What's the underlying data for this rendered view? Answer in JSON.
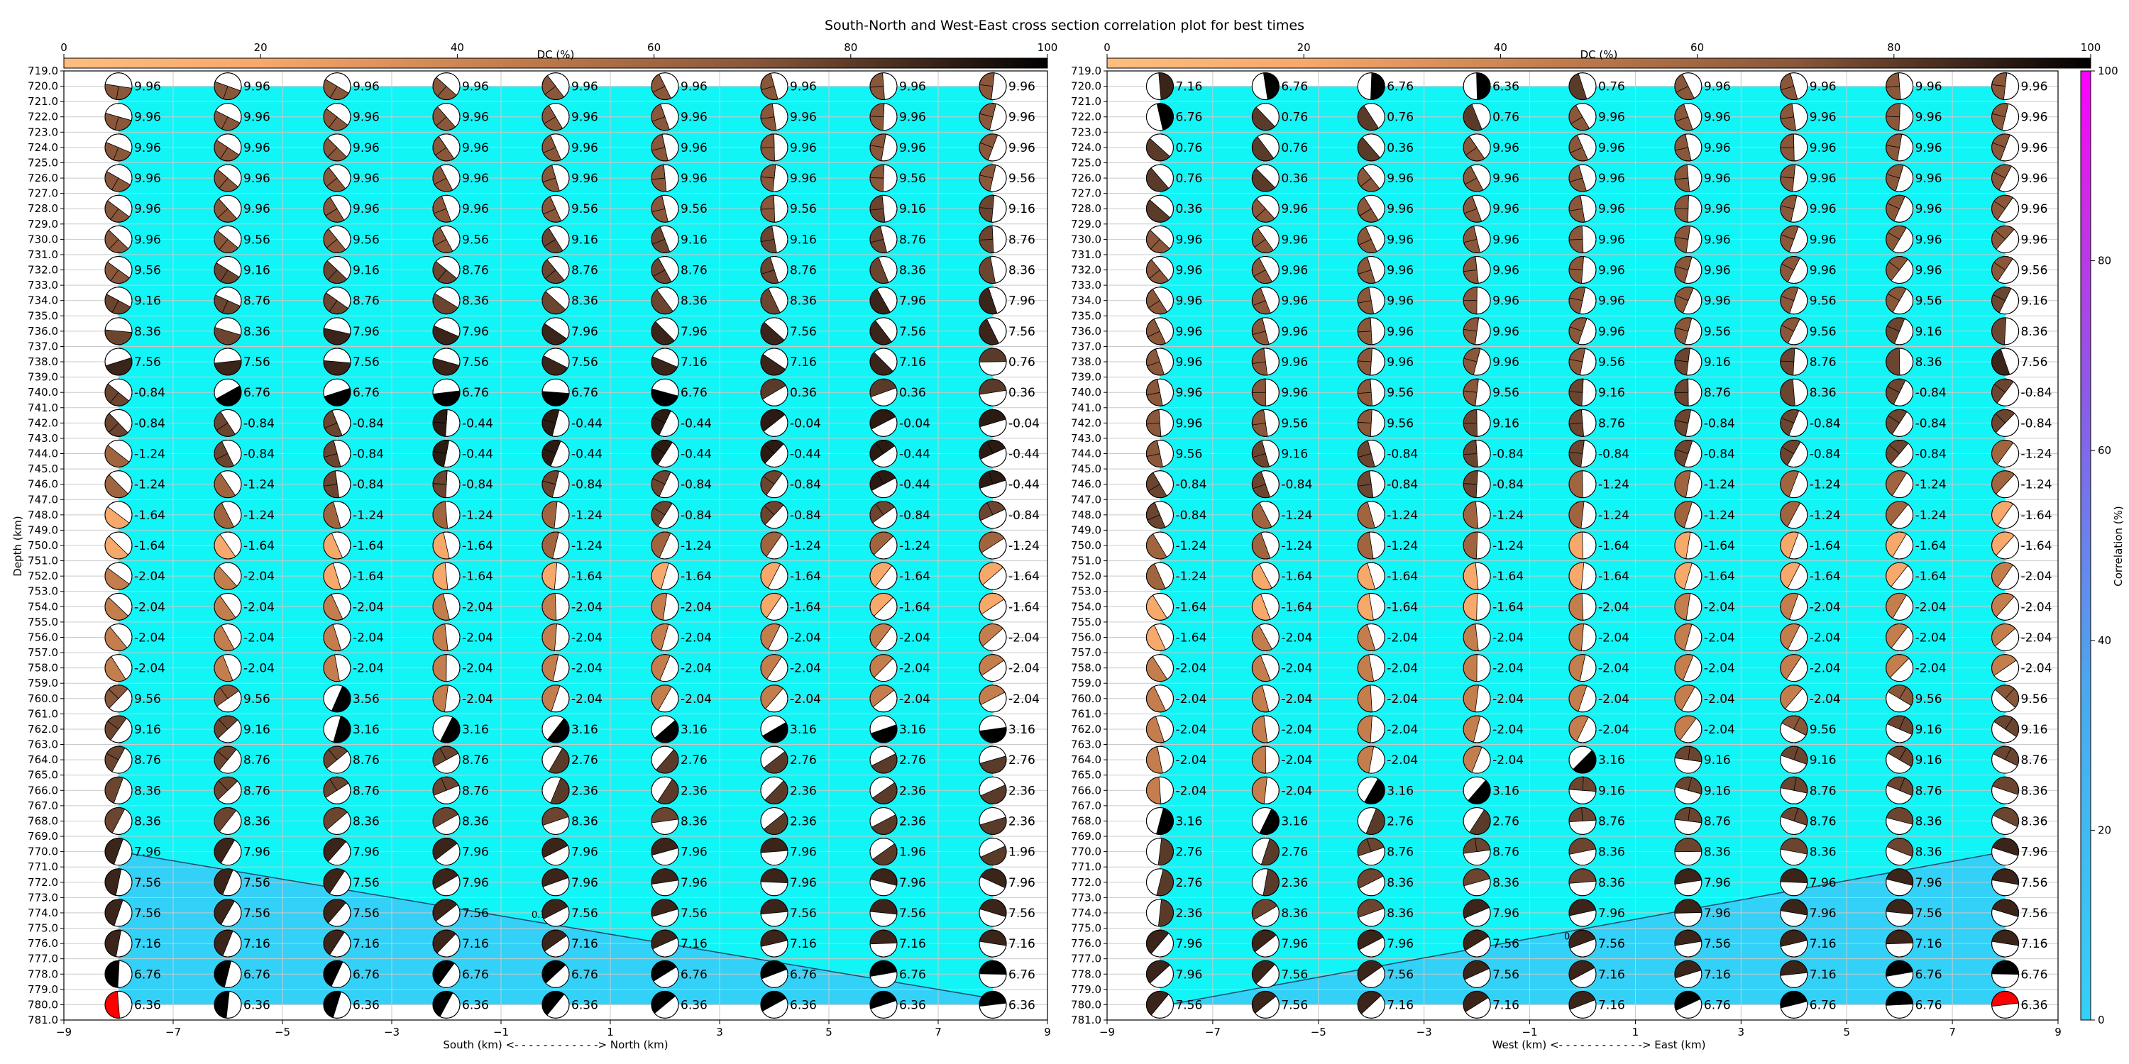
{
  "title": "South-North and West-East cross section correlation plot for best times",
  "colors": {
    "background_fill": "#12f5f7",
    "lower_fill": "#33d1f7",
    "grid": "#c9c9c9",
    "dc_cmap": [
      "#fdbe7f",
      "#f7a86b",
      "#d6844f",
      "#a0653e",
      "#6b4530",
      "#2b1b12",
      "#000000"
    ],
    "corr_cmap": [
      "#33d1f7",
      "#4aa8f0",
      "#8a5ce8",
      "#c92ee6",
      "#ff00ff"
    ],
    "highlight": "#ff0000"
  },
  "chart_data": [
    {
      "type": "scatter",
      "name": "south-north-panel",
      "xlabel": "South (km) <- - - - - - - - - - - -> North (km)",
      "ylabel": "Depth (km)",
      "xlim": [
        -9,
        9
      ],
      "ylim": [
        781,
        719
      ],
      "xticks": [
        "−9",
        "−7",
        "−5",
        "−3",
        "−1",
        "1",
        "3",
        "5",
        "7",
        "9"
      ],
      "yticks_from": 719,
      "yticks_to": 781,
      "ytick_step": 1,
      "x": [
        -8,
        -6,
        -4,
        -2,
        0,
        2,
        4,
        6,
        8
      ],
      "depths": [
        720,
        722,
        724,
        726,
        728,
        730,
        732,
        734,
        736,
        738,
        740,
        742,
        744,
        746,
        748,
        750,
        752,
        754,
        756,
        758,
        760,
        762,
        764,
        766,
        768,
        770,
        772,
        774,
        776,
        778,
        780
      ],
      "value_labels": [
        [
          "9.96",
          "9.96",
          "9.96",
          "9.96",
          "9.96",
          "9.96",
          "9.96",
          "9.96",
          "9.96"
        ],
        [
          "9.96",
          "9.96",
          "9.96",
          "9.96",
          "9.96",
          "9.96",
          "9.96",
          "9.96",
          "9.96"
        ],
        [
          "9.96",
          "9.96",
          "9.96",
          "9.96",
          "9.96",
          "9.96",
          "9.96",
          "9.96",
          "9.96"
        ],
        [
          "9.96",
          "9.96",
          "9.96",
          "9.96",
          "9.96",
          "9.96",
          "9.96",
          "9.56",
          "9.56"
        ],
        [
          "9.96",
          "9.96",
          "9.96",
          "9.96",
          "9.56",
          "9.56",
          "9.56",
          "9.16",
          "9.16"
        ],
        [
          "9.96",
          "9.56",
          "9.56",
          "9.56",
          "9.16",
          "9.16",
          "9.16",
          "8.76",
          "8.76"
        ],
        [
          "9.56",
          "9.16",
          "9.16",
          "8.76",
          "8.76",
          "8.76",
          "8.76",
          "8.36",
          "8.36"
        ],
        [
          "9.16",
          "8.76",
          "8.76",
          "8.36",
          "8.36",
          "8.36",
          "8.36",
          "7.96",
          "7.96"
        ],
        [
          "8.36",
          "8.36",
          "7.96",
          "7.96",
          "7.96",
          "7.96",
          "7.56",
          "7.56",
          "7.56"
        ],
        [
          "7.56",
          "7.56",
          "7.56",
          "7.56",
          "7.56",
          "7.16",
          "7.16",
          "7.16",
          "0.76"
        ],
        [
          "-0.84",
          "6.76",
          "6.76",
          "6.76",
          "6.76",
          "6.76",
          "0.36",
          "0.36",
          "0.36"
        ],
        [
          "-0.84",
          "-0.84",
          "-0.84",
          "-0.44",
          "-0.44",
          "-0.44",
          "-0.04",
          "-0.04",
          "-0.04"
        ],
        [
          "-1.24",
          "-0.84",
          "-0.84",
          "-0.44",
          "-0.44",
          "-0.44",
          "-0.44",
          "-0.44",
          "-0.44"
        ],
        [
          "-1.24",
          "-1.24",
          "-0.84",
          "-0.84",
          "-0.84",
          "-0.84",
          "-0.84",
          "-0.44",
          "-0.44"
        ],
        [
          "-1.64",
          "-1.24",
          "-1.24",
          "-1.24",
          "-1.24",
          "-0.84",
          "-0.84",
          "-0.84",
          "-0.84"
        ],
        [
          "-1.64",
          "-1.64",
          "-1.64",
          "-1.64",
          "-1.24",
          "-1.24",
          "-1.24",
          "-1.24",
          "-1.24"
        ],
        [
          "-2.04",
          "-2.04",
          "-1.64",
          "-1.64",
          "-1.64",
          "-1.64",
          "-1.64",
          "-1.64",
          "-1.64"
        ],
        [
          "-2.04",
          "-2.04",
          "-2.04",
          "-2.04",
          "-2.04",
          "-2.04",
          "-1.64",
          "-1.64",
          "-1.64"
        ],
        [
          "-2.04",
          "-2.04",
          "-2.04",
          "-2.04",
          "-2.04",
          "-2.04",
          "-2.04",
          "-2.04",
          "-2.04"
        ],
        [
          "-2.04",
          "-2.04",
          "-2.04",
          "-2.04",
          "-2.04",
          "-2.04",
          "-2.04",
          "-2.04",
          "-2.04"
        ],
        [
          "9.56",
          "9.56",
          "3.56",
          "-2.04",
          "-2.04",
          "-2.04",
          "-2.04",
          "-2.04",
          "-2.04"
        ],
        [
          "9.16",
          "9.16",
          "3.16",
          "3.16",
          "3.16",
          "3.16",
          "3.16",
          "3.16",
          "3.16"
        ],
        [
          "8.76",
          "8.76",
          "8.76",
          "8.76",
          "2.76",
          "2.76",
          "2.76",
          "2.76",
          "2.76"
        ],
        [
          "8.36",
          "8.76",
          "8.76",
          "8.76",
          "2.36",
          "2.36",
          "2.36",
          "2.36",
          "2.36"
        ],
        [
          "8.36",
          "8.36",
          "8.36",
          "8.36",
          "8.36",
          "8.36",
          "2.36",
          "2.36",
          "2.36"
        ],
        [
          "7.96",
          "7.96",
          "7.96",
          "7.96",
          "7.96",
          "7.96",
          "7.96",
          "1.96",
          "1.96"
        ],
        [
          "7.56",
          "7.56",
          "7.56",
          "7.96",
          "7.96",
          "7.96",
          "7.96",
          "7.96",
          "7.96"
        ],
        [
          "7.56",
          "7.56",
          "7.56",
          "7.56",
          "7.56",
          "7.56",
          "7.56",
          "7.56",
          "7.56"
        ],
        [
          "7.16",
          "7.16",
          "7.16",
          "7.16",
          "7.16",
          "7.16",
          "7.16",
          "7.16",
          "7.16"
        ],
        [
          "6.76",
          "6.76",
          "6.76",
          "6.76",
          "6.76",
          "6.76",
          "6.76",
          "6.76",
          "6.76"
        ],
        [
          "6.36",
          "6.36",
          "6.36",
          "6.36",
          "6.36",
          "6.36",
          "6.36",
          "6.36",
          "6.36"
        ]
      ],
      "boundary_line": {
        "x": [
          -8,
          8
        ],
        "depth": [
          770,
          779.6
        ]
      },
      "boundary_label": "0.100",
      "boundary_label_at": {
        "x": -0.2,
        "depth": 774.1
      },
      "highlight_point": {
        "x": -8,
        "depth": 780
      }
    },
    {
      "type": "scatter",
      "name": "west-east-panel",
      "xlabel": "West (km) <- - - - - - - - - - - -> East (km)",
      "ylabel": "",
      "xlim": [
        -9,
        9
      ],
      "ylim": [
        781,
        719
      ],
      "xticks": [
        "−9",
        "−7",
        "−5",
        "−3",
        "−1",
        "1",
        "3",
        "5",
        "7",
        "9"
      ],
      "yticks_from": 719,
      "yticks_to": 781,
      "ytick_step": 1,
      "x": [
        -8,
        -6,
        -4,
        -2,
        0,
        2,
        4,
        6,
        8
      ],
      "depths": [
        720,
        722,
        724,
        726,
        728,
        730,
        732,
        734,
        736,
        738,
        740,
        742,
        744,
        746,
        748,
        750,
        752,
        754,
        756,
        758,
        760,
        762,
        764,
        766,
        768,
        770,
        772,
        774,
        776,
        778,
        780
      ],
      "value_labels": [
        [
          "7.16",
          "6.76",
          "6.76",
          "6.36",
          "0.76",
          "9.96",
          "9.96",
          "9.96",
          "9.96"
        ],
        [
          "6.76",
          "0.76",
          "0.76",
          "0.76",
          "9.96",
          "9.96",
          "9.96",
          "9.96",
          "9.96"
        ],
        [
          "0.76",
          "0.76",
          "0.36",
          "9.96",
          "9.96",
          "9.96",
          "9.96",
          "9.96",
          "9.96"
        ],
        [
          "0.76",
          "0.36",
          "9.96",
          "9.96",
          "9.96",
          "9.96",
          "9.96",
          "9.96",
          "9.96"
        ],
        [
          "0.36",
          "9.96",
          "9.96",
          "9.96",
          "9.96",
          "9.96",
          "9.96",
          "9.96",
          "9.96"
        ],
        [
          "9.96",
          "9.96",
          "9.96",
          "9.96",
          "9.96",
          "9.96",
          "9.96",
          "9.96",
          "9.96"
        ],
        [
          "9.96",
          "9.96",
          "9.96",
          "9.96",
          "9.96",
          "9.96",
          "9.96",
          "9.96",
          "9.56"
        ],
        [
          "9.96",
          "9.96",
          "9.96",
          "9.96",
          "9.96",
          "9.96",
          "9.56",
          "9.56",
          "9.16"
        ],
        [
          "9.96",
          "9.96",
          "9.96",
          "9.96",
          "9.96",
          "9.56",
          "9.56",
          "9.16",
          "8.36"
        ],
        [
          "9.96",
          "9.96",
          "9.96",
          "9.96",
          "9.56",
          "9.16",
          "8.76",
          "8.36",
          "7.56"
        ],
        [
          "9.96",
          "9.96",
          "9.56",
          "9.56",
          "9.16",
          "8.76",
          "8.36",
          "-0.84",
          "-0.84"
        ],
        [
          "9.96",
          "9.56",
          "9.56",
          "9.16",
          "8.76",
          "-0.84",
          "-0.84",
          "-0.84",
          "-0.84"
        ],
        [
          "9.56",
          "9.16",
          "-0.84",
          "-0.84",
          "-0.84",
          "-0.84",
          "-0.84",
          "-0.84",
          "-1.24"
        ],
        [
          "-0.84",
          "-0.84",
          "-0.84",
          "-0.84",
          "-1.24",
          "-1.24",
          "-1.24",
          "-1.24",
          "-1.24"
        ],
        [
          "-0.84",
          "-1.24",
          "-1.24",
          "-1.24",
          "-1.24",
          "-1.24",
          "-1.24",
          "-1.24",
          "-1.64"
        ],
        [
          "-1.24",
          "-1.24",
          "-1.24",
          "-1.24",
          "-1.64",
          "-1.64",
          "-1.64",
          "-1.64",
          "-1.64"
        ],
        [
          "-1.24",
          "-1.64",
          "-1.64",
          "-1.64",
          "-1.64",
          "-1.64",
          "-1.64",
          "-1.64",
          "-2.04"
        ],
        [
          "-1.64",
          "-1.64",
          "-1.64",
          "-1.64",
          "-2.04",
          "-2.04",
          "-2.04",
          "-2.04",
          "-2.04"
        ],
        [
          "-1.64",
          "-2.04",
          "-2.04",
          "-2.04",
          "-2.04",
          "-2.04",
          "-2.04",
          "-2.04",
          "-2.04"
        ],
        [
          "-2.04",
          "-2.04",
          "-2.04",
          "-2.04",
          "-2.04",
          "-2.04",
          "-2.04",
          "-2.04",
          "-2.04"
        ],
        [
          "-2.04",
          "-2.04",
          "-2.04",
          "-2.04",
          "-2.04",
          "-2.04",
          "-2.04",
          "9.56",
          "9.56"
        ],
        [
          "-2.04",
          "-2.04",
          "-2.04",
          "-2.04",
          "-2.04",
          "-2.04",
          "9.56",
          "9.16",
          "9.16"
        ],
        [
          "-2.04",
          "-2.04",
          "-2.04",
          "-2.04",
          "3.16",
          "9.16",
          "9.16",
          "9.16",
          "8.76"
        ],
        [
          "-2.04",
          "-2.04",
          "3.16",
          "3.16",
          "9.16",
          "9.16",
          "8.76",
          "8.76",
          "8.36"
        ],
        [
          "3.16",
          "3.16",
          "2.76",
          "2.76",
          "8.76",
          "8.76",
          "8.76",
          "8.36",
          "8.36"
        ],
        [
          "2.76",
          "2.76",
          "8.76",
          "8.76",
          "8.36",
          "8.36",
          "8.36",
          "8.36",
          "7.96"
        ],
        [
          "2.76",
          "2.36",
          "8.36",
          "8.36",
          "8.36",
          "7.96",
          "7.96",
          "7.96",
          "7.56"
        ],
        [
          "2.36",
          "8.36",
          "8.36",
          "7.96",
          "7.96",
          "7.96",
          "7.96",
          "7.56",
          "7.56"
        ],
        [
          "7.96",
          "7.96",
          "7.96",
          "7.56",
          "7.56",
          "7.56",
          "7.16",
          "7.16",
          "7.16"
        ],
        [
          "7.96",
          "7.56",
          "7.56",
          "7.56",
          "7.16",
          "7.16",
          "7.16",
          "6.76",
          "6.76"
        ],
        [
          "7.56",
          "7.56",
          "7.16",
          "7.16",
          "7.16",
          "6.76",
          "6.76",
          "6.76",
          "6.36"
        ]
      ],
      "boundary_line": {
        "x": [
          -8,
          8
        ],
        "depth": [
          780.1,
          770
        ]
      },
      "boundary_label": "0.100",
      "boundary_label_at": {
        "x": -0.1,
        "depth": 775.5
      },
      "highlight_point": {
        "x": 8,
        "depth": 780
      }
    }
  ],
  "dc_colorbar": {
    "label": "DC (%)",
    "ticks": [
      "0",
      "20",
      "40",
      "60",
      "80",
      "100"
    ]
  },
  "corr_colorbar": {
    "label": "Correlation (%)",
    "ticks": [
      "0",
      "20",
      "40",
      "60",
      "80",
      "100"
    ]
  }
}
